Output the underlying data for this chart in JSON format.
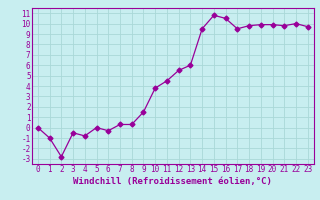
{
  "x": [
    0,
    1,
    2,
    3,
    4,
    5,
    6,
    7,
    8,
    9,
    10,
    11,
    12,
    13,
    14,
    15,
    16,
    17,
    18,
    19,
    20,
    21,
    22,
    23
  ],
  "y": [
    0.0,
    -1.0,
    -2.8,
    -0.5,
    -0.8,
    0.0,
    -0.3,
    0.3,
    0.3,
    1.5,
    3.8,
    4.5,
    5.5,
    6.0,
    9.5,
    10.8,
    10.5,
    9.5,
    9.8,
    9.9,
    9.9,
    9.8,
    10.0,
    9.7
  ],
  "line_color": "#990099",
  "marker": "D",
  "marker_size": 2.5,
  "bg_color": "#c8eef0",
  "grid_color": "#aad8d8",
  "xlabel": "Windchill (Refroidissement éolien,°C)",
  "xlim": [
    -0.5,
    23.5
  ],
  "ylim": [
    -3.5,
    11.5
  ],
  "yticks": [
    -3,
    -2,
    -1,
    0,
    1,
    2,
    3,
    4,
    5,
    6,
    7,
    8,
    9,
    10,
    11
  ],
  "xticks": [
    0,
    1,
    2,
    3,
    4,
    5,
    6,
    7,
    8,
    9,
    10,
    11,
    12,
    13,
    14,
    15,
    16,
    17,
    18,
    19,
    20,
    21,
    22,
    23
  ],
  "tick_fontsize": 5.5,
  "xlabel_fontsize": 6.5,
  "xlabel_color": "#990099",
  "tick_color": "#990099",
  "spine_color": "#990099",
  "line_width": 0.9
}
